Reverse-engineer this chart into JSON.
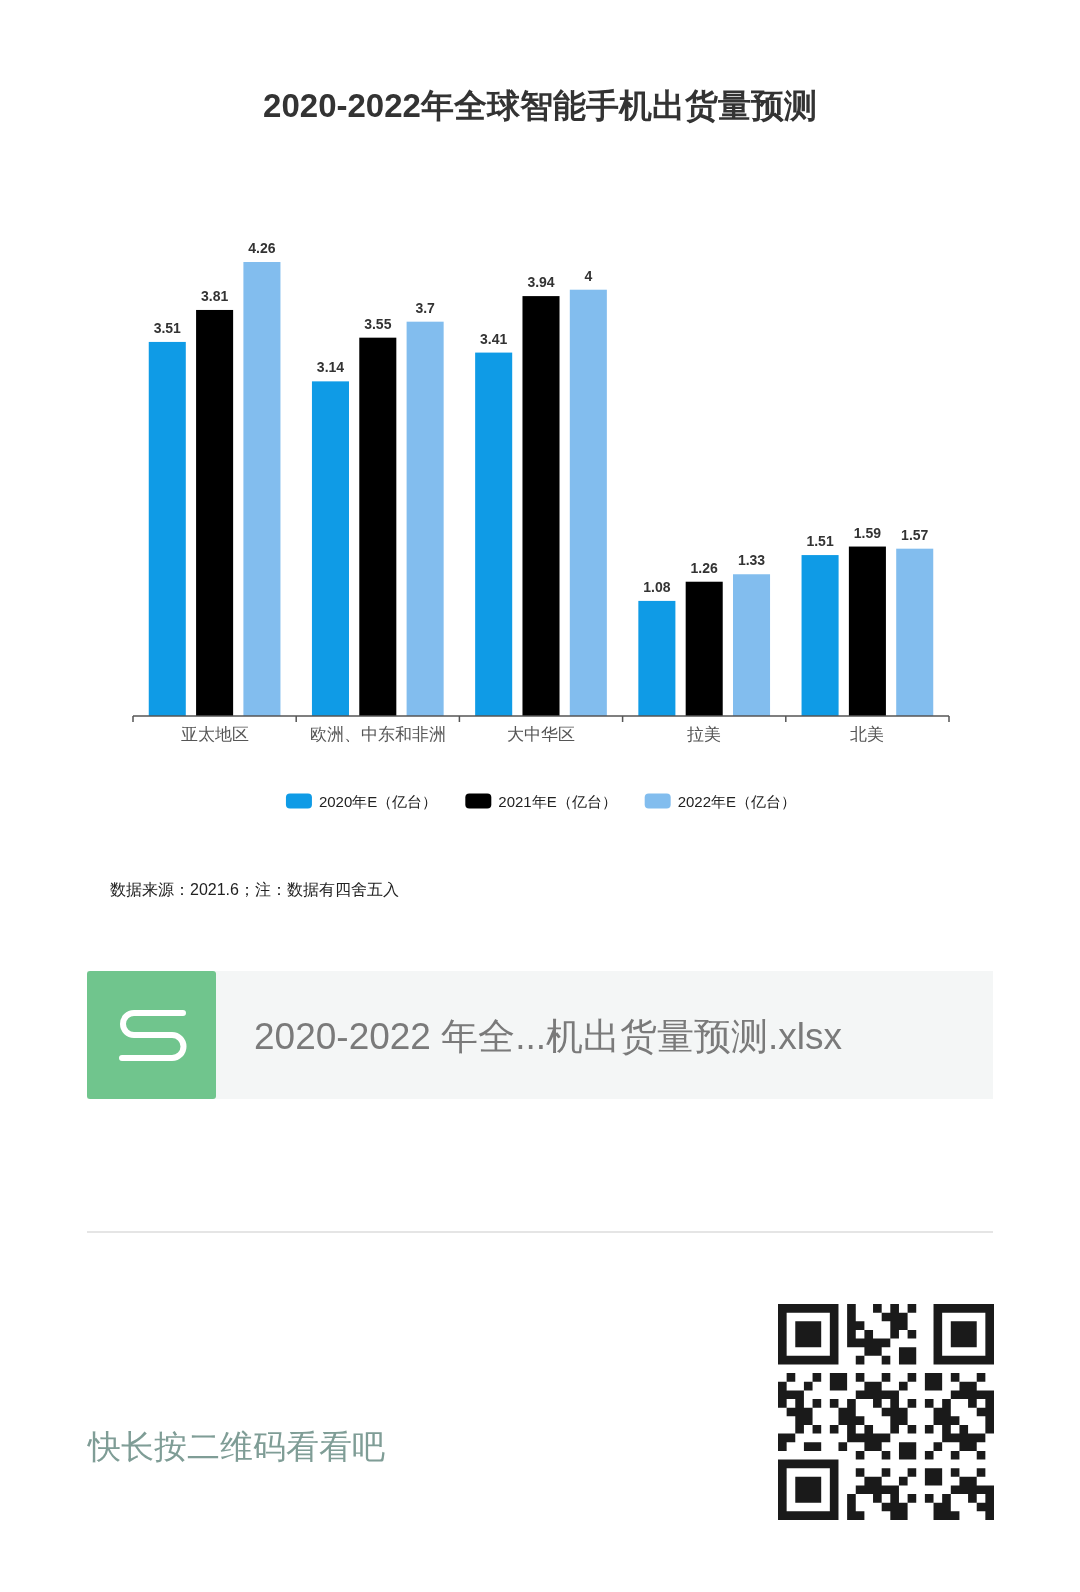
{
  "chart_data": {
    "type": "bar",
    "title": "2020-2022年全球智能手机出货量预测",
    "categories": [
      "亚太地区",
      "欧洲、中东和非洲",
      "大中华区",
      "拉美",
      "北美"
    ],
    "series": [
      {
        "name": "2020年E（亿台）",
        "color": "#0f9be6",
        "values": [
          3.51,
          3.14,
          3.41,
          1.08,
          1.51
        ]
      },
      {
        "name": "2021年E（亿台）",
        "color": "#000000",
        "values": [
          3.81,
          3.55,
          3.94,
          1.26,
          1.59
        ]
      },
      {
        "name": "2022年E（亿台）",
        "color": "#82bdee",
        "values": [
          4.26,
          3.7,
          4,
          1.33,
          1.57
        ]
      }
    ],
    "data_labels": true,
    "legend": "bottom",
    "annotations": [
      "数据来源：2021.6；注：数据有四舍五入",
      "2020-2022 年全...机出货量预测.xlsx",
      "快长按二维码看看吧"
    ]
  }
}
